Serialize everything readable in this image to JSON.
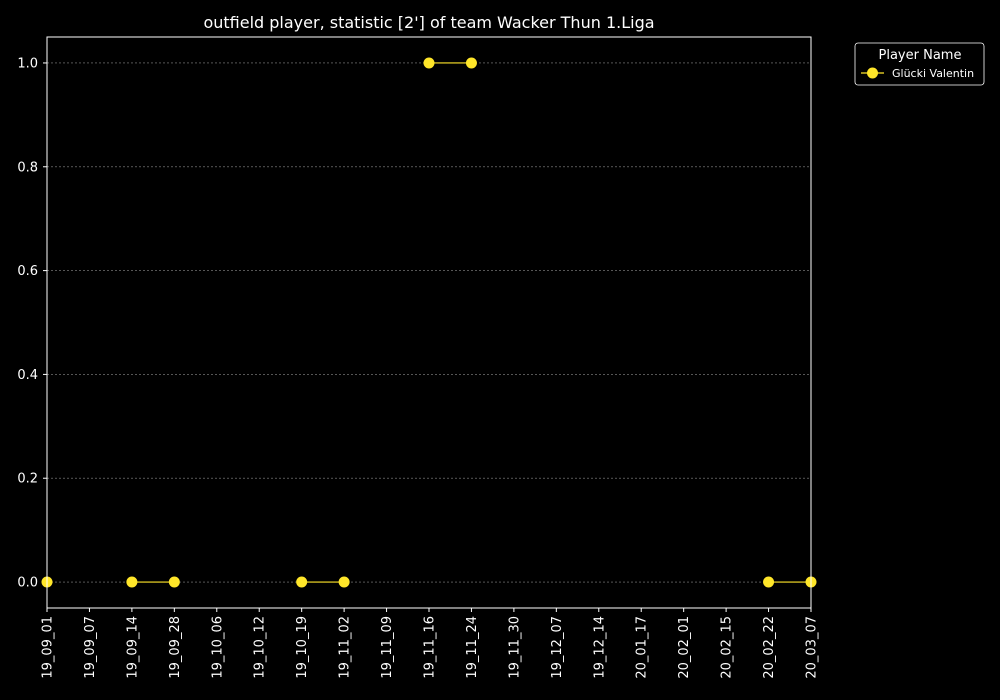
{
  "chart_data": {
    "type": "line",
    "title": "outfield player, statistic [2'] of team Wacker Thun 1.Liga",
    "xlabel": "",
    "ylabel": "",
    "categories": [
      "19_09_01",
      "19_09_07",
      "19_09_14",
      "19_09_28",
      "19_10_06",
      "19_10_12",
      "19_10_19",
      "19_11_02",
      "19_11_09",
      "19_11_16",
      "19_11_24",
      "19_11_30",
      "19_12_07",
      "19_12_14",
      "20_01_17",
      "20_02_01",
      "20_02_15",
      "20_02_22",
      "20_03_07"
    ],
    "yticks": [
      "0.0",
      "0.2",
      "0.4",
      "0.6",
      "0.8",
      "1.0"
    ],
    "ylim": [
      -0.05,
      1.05
    ],
    "grid": true,
    "legend": {
      "title": "Player Name",
      "placement": "outside-top-right"
    },
    "series": [
      {
        "name": "Glücki Valentin",
        "color": "#ffe629",
        "values": [
          0,
          null,
          0,
          0,
          null,
          null,
          0,
          0,
          null,
          1,
          1,
          null,
          null,
          null,
          null,
          null,
          null,
          0,
          0
        ]
      }
    ]
  }
}
